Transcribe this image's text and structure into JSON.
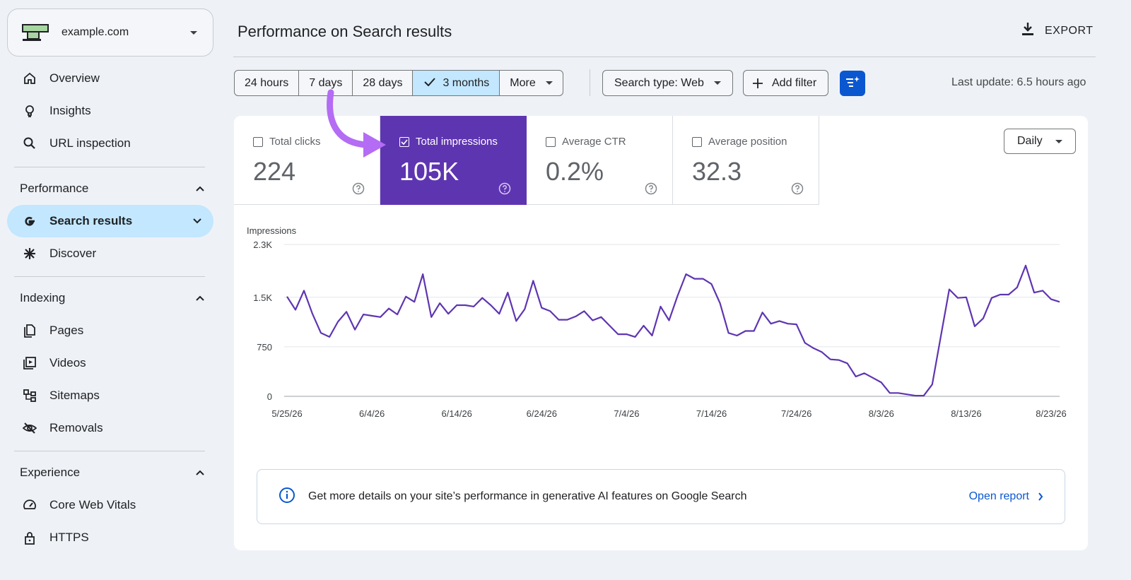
{
  "property": {
    "name": "example.com"
  },
  "nav": {
    "top": [
      {
        "label": "Overview",
        "icon": "home-icon"
      },
      {
        "label": "Insights",
        "icon": "lightbulb-icon"
      },
      {
        "label": "URL inspection",
        "icon": "search-icon"
      }
    ],
    "performance": {
      "heading": "Performance",
      "items": [
        {
          "label": "Search results",
          "icon": "google-g-icon"
        },
        {
          "label": "Discover",
          "icon": "asterisk-icon"
        }
      ]
    },
    "indexing": {
      "heading": "Indexing",
      "items": [
        {
          "label": "Pages",
          "icon": "pages-icon"
        },
        {
          "label": "Videos",
          "icon": "video-icon"
        },
        {
          "label": "Sitemaps",
          "icon": "sitemap-icon"
        },
        {
          "label": "Removals",
          "icon": "eye-off-icon"
        }
      ]
    },
    "experience": {
      "heading": "Experience",
      "items": [
        {
          "label": "Core Web Vitals",
          "icon": "gauge-icon"
        },
        {
          "label": "HTTPS",
          "icon": "lock-icon"
        }
      ]
    }
  },
  "header": {
    "title": "Performance on Search results",
    "export_label": "EXPORT"
  },
  "toolbar": {
    "ranges": [
      "24 hours",
      "7 days",
      "28 days",
      "3 months",
      "More"
    ],
    "selected_range": "3 months",
    "search_type": "Search type: Web",
    "add_filter": "Add filter",
    "last_update": "Last update: 6.5 hours ago"
  },
  "metrics": [
    {
      "label": "Total clicks",
      "value": "224",
      "checked": false
    },
    {
      "label": "Total impressions",
      "value": "105K",
      "checked": true
    },
    {
      "label": "Average CTR",
      "value": "0.2%",
      "checked": false
    },
    {
      "label": "Average position",
      "value": "32.3",
      "checked": false
    }
  ],
  "granularity": "Daily",
  "banner": {
    "text": "Get more details on your site’s performance in generative AI features on Google Search",
    "link": "Open report"
  },
  "colors": {
    "accent": "#5e35b1",
    "line": "#5e35b1",
    "brand_blue": "#0b57d0",
    "active_nav": "#c2e7ff",
    "annotation_arrow": "#b46cf4"
  },
  "chart_data": {
    "type": "line",
    "ylabel": "Impressions",
    "y_ticks": [
      "0",
      "750",
      "1.5K",
      "2.3K"
    ],
    "ylim": [
      0,
      2300
    ],
    "x_ticks": [
      "5/25/26",
      "6/4/26",
      "6/14/26",
      "6/24/26",
      "7/4/26",
      "7/14/26",
      "7/24/26",
      "8/3/26",
      "8/13/26",
      "8/23/26"
    ],
    "series": [
      {
        "values": [
          1510,
          1310,
          1600,
          1250,
          960,
          900,
          1130,
          1280,
          1010,
          1240,
          1220,
          1200,
          1330,
          1240,
          1510,
          1430,
          1850,
          1200,
          1410,
          1250,
          1380,
          1380,
          1360,
          1490,
          1380,
          1250,
          1570,
          1140,
          1320,
          1750,
          1340,
          1290,
          1160,
          1160,
          1210,
          1290,
          1150,
          1200,
          1070,
          940,
          940,
          900,
          1070,
          920,
          1360,
          1150,
          1520,
          1850,
          1780,
          1780,
          1700,
          1410,
          960,
          920,
          990,
          990,
          1270,
          1100,
          1140,
          1100,
          1090,
          810,
          730,
          670,
          560,
          550,
          500,
          300,
          350,
          280,
          210,
          50,
          50,
          30,
          10,
          10,
          180,
          900,
          1620,
          1490,
          1500,
          1060,
          1180,
          1490,
          1540,
          1540,
          1650,
          1980,
          1570,
          1600,
          1470,
          1430
        ]
      }
    ]
  }
}
